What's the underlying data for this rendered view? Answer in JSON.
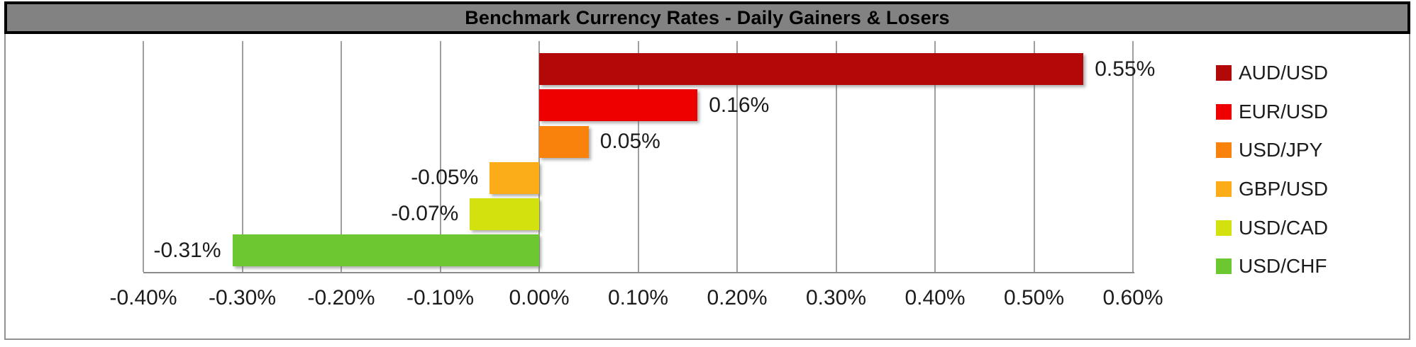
{
  "title": "Benchmark Currency Rates - Daily Gainers & Losers",
  "chart_data": {
    "type": "bar",
    "orientation": "horizontal",
    "title": "Benchmark Currency Rates - Daily Gainers & Losers",
    "categories": [
      "AUD/USD",
      "EUR/USD",
      "USD/JPY",
      "GBP/USD",
      "USD/CAD",
      "USD/CHF"
    ],
    "values": [
      0.55,
      0.16,
      0.05,
      -0.05,
      -0.07,
      -0.31
    ],
    "data_labels": [
      "0.55%",
      "0.16%",
      "0.05%",
      "-0.05%",
      "-0.07%",
      "-0.31%"
    ],
    "bar_colors": [
      "#B20808",
      "#EE0000",
      "#F8820C",
      "#FAAD18",
      "#D3E10E",
      "#6CC730"
    ],
    "xlabel": "",
    "ylabel": "",
    "xlim": [
      -0.4,
      0.6
    ],
    "x_ticks": [
      -0.4,
      -0.3,
      -0.2,
      -0.1,
      0.0,
      0.1,
      0.2,
      0.3,
      0.4,
      0.5,
      0.6
    ],
    "x_tick_labels": [
      "-0.40%",
      "-0.30%",
      "-0.20%",
      "-0.10%",
      "0.00%",
      "0.10%",
      "0.20%",
      "0.30%",
      "0.40%",
      "0.50%",
      "0.60%"
    ],
    "grid": "vertical-gridlines-on",
    "legend_position": "right",
    "legend": [
      "AUD/USD",
      "EUR/USD",
      "USD/JPY",
      "GBP/USD",
      "USD/CAD",
      "USD/CHF"
    ]
  },
  "colors": {
    "title_bg": "#828282",
    "title_border": "#000000",
    "title_text": "#000000",
    "outer_border": "#919191",
    "gridline": "#9E9E9E",
    "axis_line": "#8C8C8C",
    "label_text": "#1C1C1C",
    "background": "#FFFFFF"
  }
}
